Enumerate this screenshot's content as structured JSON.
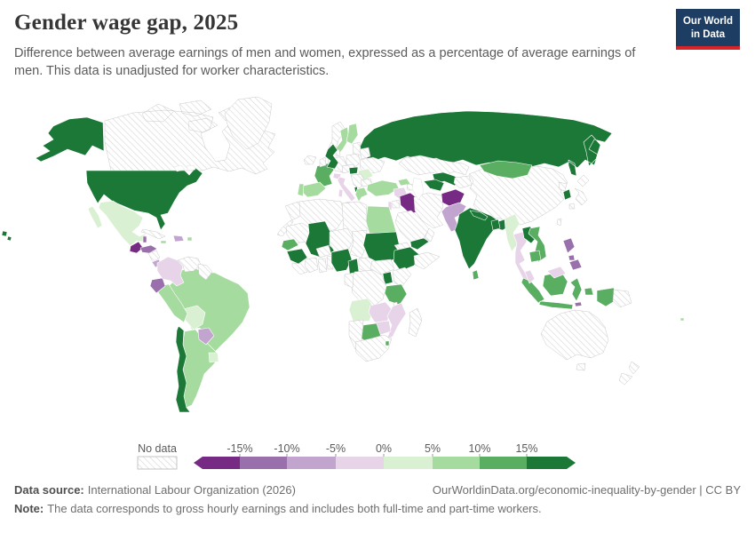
{
  "header": {
    "title": "Gender wage gap, 2025",
    "subtitle": "Difference between average earnings of men and women, expressed as a percentage of average earnings of men. This data is unadjusted for worker characteristics.",
    "logo": {
      "line1": "Our World",
      "line2": "in Data"
    }
  },
  "legend": {
    "no_data_label": "No data",
    "tick_labels": [
      "-15%",
      "-10%",
      "-5%",
      "0%",
      "5%",
      "10%",
      "15%"
    ]
  },
  "footer": {
    "data_source_label": "Data source:",
    "data_source": "International Labour Organization (2026)",
    "url": "OurWorldinData.org/economic-inequality-by-gender | CC BY",
    "note_label": "Note:",
    "note": "The data corresponds to gross hourly earnings and includes both full-time and part-time workers."
  },
  "chart_data": {
    "type": "choropleth_map",
    "title": "Gender wage gap, 2025",
    "unit": "%",
    "legend": {
      "palette": {
        "lt_-15": "#762a83",
        "-15_-10": "#9970ab",
        "-10_-5": "#c2a5cf",
        "-5_0": "#e7d4e8",
        "0_5": "#d9f0d3",
        "5_10": "#a6dba0",
        "10_15": "#5aae61",
        "gt_15": "#1b7837"
      },
      "buckets": [
        {
          "range": "< -15%",
          "key": "lt_-15"
        },
        {
          "range": "-15% to -10%",
          "key": "-15_-10"
        },
        {
          "range": "-10% to -5%",
          "key": "-10_-5"
        },
        {
          "range": "-5% to 0%",
          "key": "-5_0"
        },
        {
          "range": "0% to 5%",
          "key": "0_5"
        },
        {
          "range": "5% to 10%",
          "key": "5_10"
        },
        {
          "range": "10% to 15%",
          "key": "10_15"
        },
        {
          "range": "> 15%",
          "key": "gt_15"
        }
      ],
      "no_data_color": "hatched"
    },
    "countries": [
      {
        "name": "Russia",
        "bucket": "gt_15"
      },
      {
        "name": "Canada",
        "bucket": "no_data"
      },
      {
        "name": "Greenland",
        "bucket": "no_data"
      },
      {
        "name": "United States",
        "bucket": "gt_15"
      },
      {
        "name": "Mexico",
        "bucket": "0_5"
      },
      {
        "name": "Cuba",
        "bucket": "no_data"
      },
      {
        "name": "Jamaica",
        "bucket": "5_10"
      },
      {
        "name": "Dominican Republic",
        "bucket": "-10_-5"
      },
      {
        "name": "Puerto Rico",
        "bucket": "5_10"
      },
      {
        "name": "Guatemala",
        "bucket": "lt_-15"
      },
      {
        "name": "Belize",
        "bucket": "-15_-10"
      },
      {
        "name": "Honduras",
        "bucket": "-15_-10"
      },
      {
        "name": "Nicaragua",
        "bucket": "no_data"
      },
      {
        "name": "Costa Rica",
        "bucket": "-10_-5"
      },
      {
        "name": "Panama",
        "bucket": "-15_-10"
      },
      {
        "name": "Brazil",
        "bucket": "5_10"
      },
      {
        "name": "Argentina",
        "bucket": "5_10"
      },
      {
        "name": "Chile",
        "bucket": "gt_15"
      },
      {
        "name": "Bolivia",
        "bucket": "0_5"
      },
      {
        "name": "Paraguay",
        "bucket": "-10_-5"
      },
      {
        "name": "Uruguay",
        "bucket": "0_5"
      },
      {
        "name": "Peru",
        "bucket": "5_10"
      },
      {
        "name": "Ecuador",
        "bucket": "-15_-10"
      },
      {
        "name": "Colombia",
        "bucket": "-5_0"
      },
      {
        "name": "Venezuela",
        "bucket": "no_data"
      },
      {
        "name": "Guyana & Suriname",
        "bucket": "no_data"
      },
      {
        "name": "Iceland",
        "bucket": "no_data"
      },
      {
        "name": "Norway",
        "bucket": "no_data"
      },
      {
        "name": "Sweden",
        "bucket": "5_10"
      },
      {
        "name": "Finland",
        "bucket": "5_10"
      },
      {
        "name": "Baltic States",
        "bucket": "no_data"
      },
      {
        "name": "Denmark",
        "bucket": "no_data"
      },
      {
        "name": "Germany",
        "bucket": "no_data"
      },
      {
        "name": "Netherlands & Belgium",
        "bucket": "no_data"
      },
      {
        "name": "Poland",
        "bucket": "no_data"
      },
      {
        "name": "Belarus",
        "bucket": "no_data"
      },
      {
        "name": "Ukraine",
        "bucket": "no_data"
      },
      {
        "name": "Czechia & Austria",
        "bucket": "no_data"
      },
      {
        "name": "France",
        "bucket": "10_15"
      },
      {
        "name": "Switzerland",
        "bucket": "-5_0"
      },
      {
        "name": "Italy",
        "bucket": "-5_0"
      },
      {
        "name": "Spain",
        "bucket": "5_10"
      },
      {
        "name": "Portugal",
        "bucket": "5_10"
      },
      {
        "name": "United Kingdom",
        "bucket": "gt_15"
      },
      {
        "name": "Ireland",
        "bucket": "no_data"
      },
      {
        "name": "Hungary",
        "bucket": "gt_15"
      },
      {
        "name": "Romania",
        "bucket": "0_5"
      },
      {
        "name": "Serbia & Balkans",
        "bucket": "no_data"
      },
      {
        "name": "Bulgaria",
        "bucket": "no_data"
      },
      {
        "name": "Albania",
        "bucket": "gt_15"
      },
      {
        "name": "Greece",
        "bucket": "5_10"
      },
      {
        "name": "Kazakhstan",
        "bucket": "no_data"
      },
      {
        "name": "Uzbekistan",
        "bucket": "gt_15"
      },
      {
        "name": "Turkmenistan",
        "bucket": "gt_15"
      },
      {
        "name": "Kyrgyzstan & Tajikistan",
        "bucket": "no_data"
      },
      {
        "name": "China",
        "bucket": "no_data"
      },
      {
        "name": "Mongolia",
        "bucket": "10_15"
      },
      {
        "name": "North Korea",
        "bucket": "no_data"
      },
      {
        "name": "South Korea",
        "bucket": "gt_15"
      },
      {
        "name": "Japan",
        "bucket": "no_data"
      },
      {
        "name": "Taiwan",
        "bucket": "no_data"
      },
      {
        "name": "Turkey",
        "bucket": "5_10"
      },
      {
        "name": "Georgia",
        "bucket": "5_10"
      },
      {
        "name": "Azerbaijan",
        "bucket": "no_data"
      },
      {
        "name": "Syria",
        "bucket": "-5_0"
      },
      {
        "name": "Iraq",
        "bucket": "lt_-15"
      },
      {
        "name": "Iran",
        "bucket": "no_data"
      },
      {
        "name": "Jordan",
        "bucket": "no_data"
      },
      {
        "name": "Israel",
        "bucket": "-5_0"
      },
      {
        "name": "Saudi Arabia",
        "bucket": "no_data"
      },
      {
        "name": "Yemen",
        "bucket": "gt_15"
      },
      {
        "name": "Oman",
        "bucket": "no_data"
      },
      {
        "name": "Afghanistan",
        "bucket": "lt_-15"
      },
      {
        "name": "Pakistan",
        "bucket": "-10_-5"
      },
      {
        "name": "India",
        "bucket": "gt_15"
      },
      {
        "name": "Nepal",
        "bucket": "gt_15"
      },
      {
        "name": "Bangladesh",
        "bucket": "gt_15"
      },
      {
        "name": "Sri Lanka",
        "bucket": "10_15"
      },
      {
        "name": "Morocco",
        "bucket": "no_data"
      },
      {
        "name": "Algeria",
        "bucket": "no_data"
      },
      {
        "name": "Libya",
        "bucket": "no_data"
      },
      {
        "name": "Egypt",
        "bucket": "5_10"
      },
      {
        "name": "Mauritania",
        "bucket": "no_data"
      },
      {
        "name": "Mali",
        "bucket": "gt_15"
      },
      {
        "name": "Niger",
        "bucket": "no_data"
      },
      {
        "name": "Chad",
        "bucket": "no_data"
      },
      {
        "name": "Senegal",
        "bucket": "10_15"
      },
      {
        "name": "Guinea",
        "bucket": "gt_15"
      },
      {
        "name": "Sierra Leone & Liberia",
        "bucket": "no_data"
      },
      {
        "name": "Côte d'Ivoire",
        "bucket": "no_data"
      },
      {
        "name": "Ghana",
        "bucket": "no_data"
      },
      {
        "name": "Burkina Faso",
        "bucket": "no_data"
      },
      {
        "name": "Togo & Benin",
        "bucket": "no_data"
      },
      {
        "name": "Nigeria",
        "bucket": "gt_15"
      },
      {
        "name": "Cameroon",
        "bucket": "gt_15"
      },
      {
        "name": "Central African Republic",
        "bucket": "no_data"
      },
      {
        "name": "Sudan",
        "bucket": "gt_15"
      },
      {
        "name": "Eritrea",
        "bucket": "no_data"
      },
      {
        "name": "Ethiopia",
        "bucket": "gt_15"
      },
      {
        "name": "Somalia",
        "bucket": "no_data"
      },
      {
        "name": "South Sudan",
        "bucket": "no_data"
      },
      {
        "name": "Uganda",
        "bucket": "gt_15"
      },
      {
        "name": "Kenya",
        "bucket": "no_data"
      },
      {
        "name": "DR Congo",
        "bucket": "no_data"
      },
      {
        "name": "Congo & Gabon",
        "bucket": "no_data"
      },
      {
        "name": "Tanzania",
        "bucket": "10_15"
      },
      {
        "name": "Angola",
        "bucket": "0_5"
      },
      {
        "name": "Zambia",
        "bucket": "-5_0"
      },
      {
        "name": "Malawi",
        "bucket": "no_data"
      },
      {
        "name": "Mozambique",
        "bucket": "-5_0"
      },
      {
        "name": "Zimbabwe",
        "bucket": "-5_0"
      },
      {
        "name": "Botswana",
        "bucket": "10_15"
      },
      {
        "name": "Namibia",
        "bucket": "no_data"
      },
      {
        "name": "South Africa",
        "bucket": "no_data"
      },
      {
        "name": "Eswatini",
        "bucket": "10_15"
      },
      {
        "name": "Madagascar",
        "bucket": "no_data"
      },
      {
        "name": "Myanmar",
        "bucket": "0_5"
      },
      {
        "name": "Thailand",
        "bucket": "-5_0"
      },
      {
        "name": "Laos",
        "bucket": "gt_15"
      },
      {
        "name": "Vietnam",
        "bucket": "10_15"
      },
      {
        "name": "Cambodia",
        "bucket": "10_15"
      },
      {
        "name": "Indonesia",
        "bucket": "10_15"
      },
      {
        "name": "Malaysia",
        "bucket": "-5_0"
      },
      {
        "name": "Timor-Leste",
        "bucket": "-15_-10"
      },
      {
        "name": "Philippines",
        "bucket": "-15_-10"
      },
      {
        "name": "Papua New Guinea",
        "bucket": "no_data"
      },
      {
        "name": "Australia",
        "bucket": "no_data"
      },
      {
        "name": "New Zealand",
        "bucket": "no_data"
      },
      {
        "name": "Fiji",
        "bucket": "5_10"
      }
    ]
  }
}
